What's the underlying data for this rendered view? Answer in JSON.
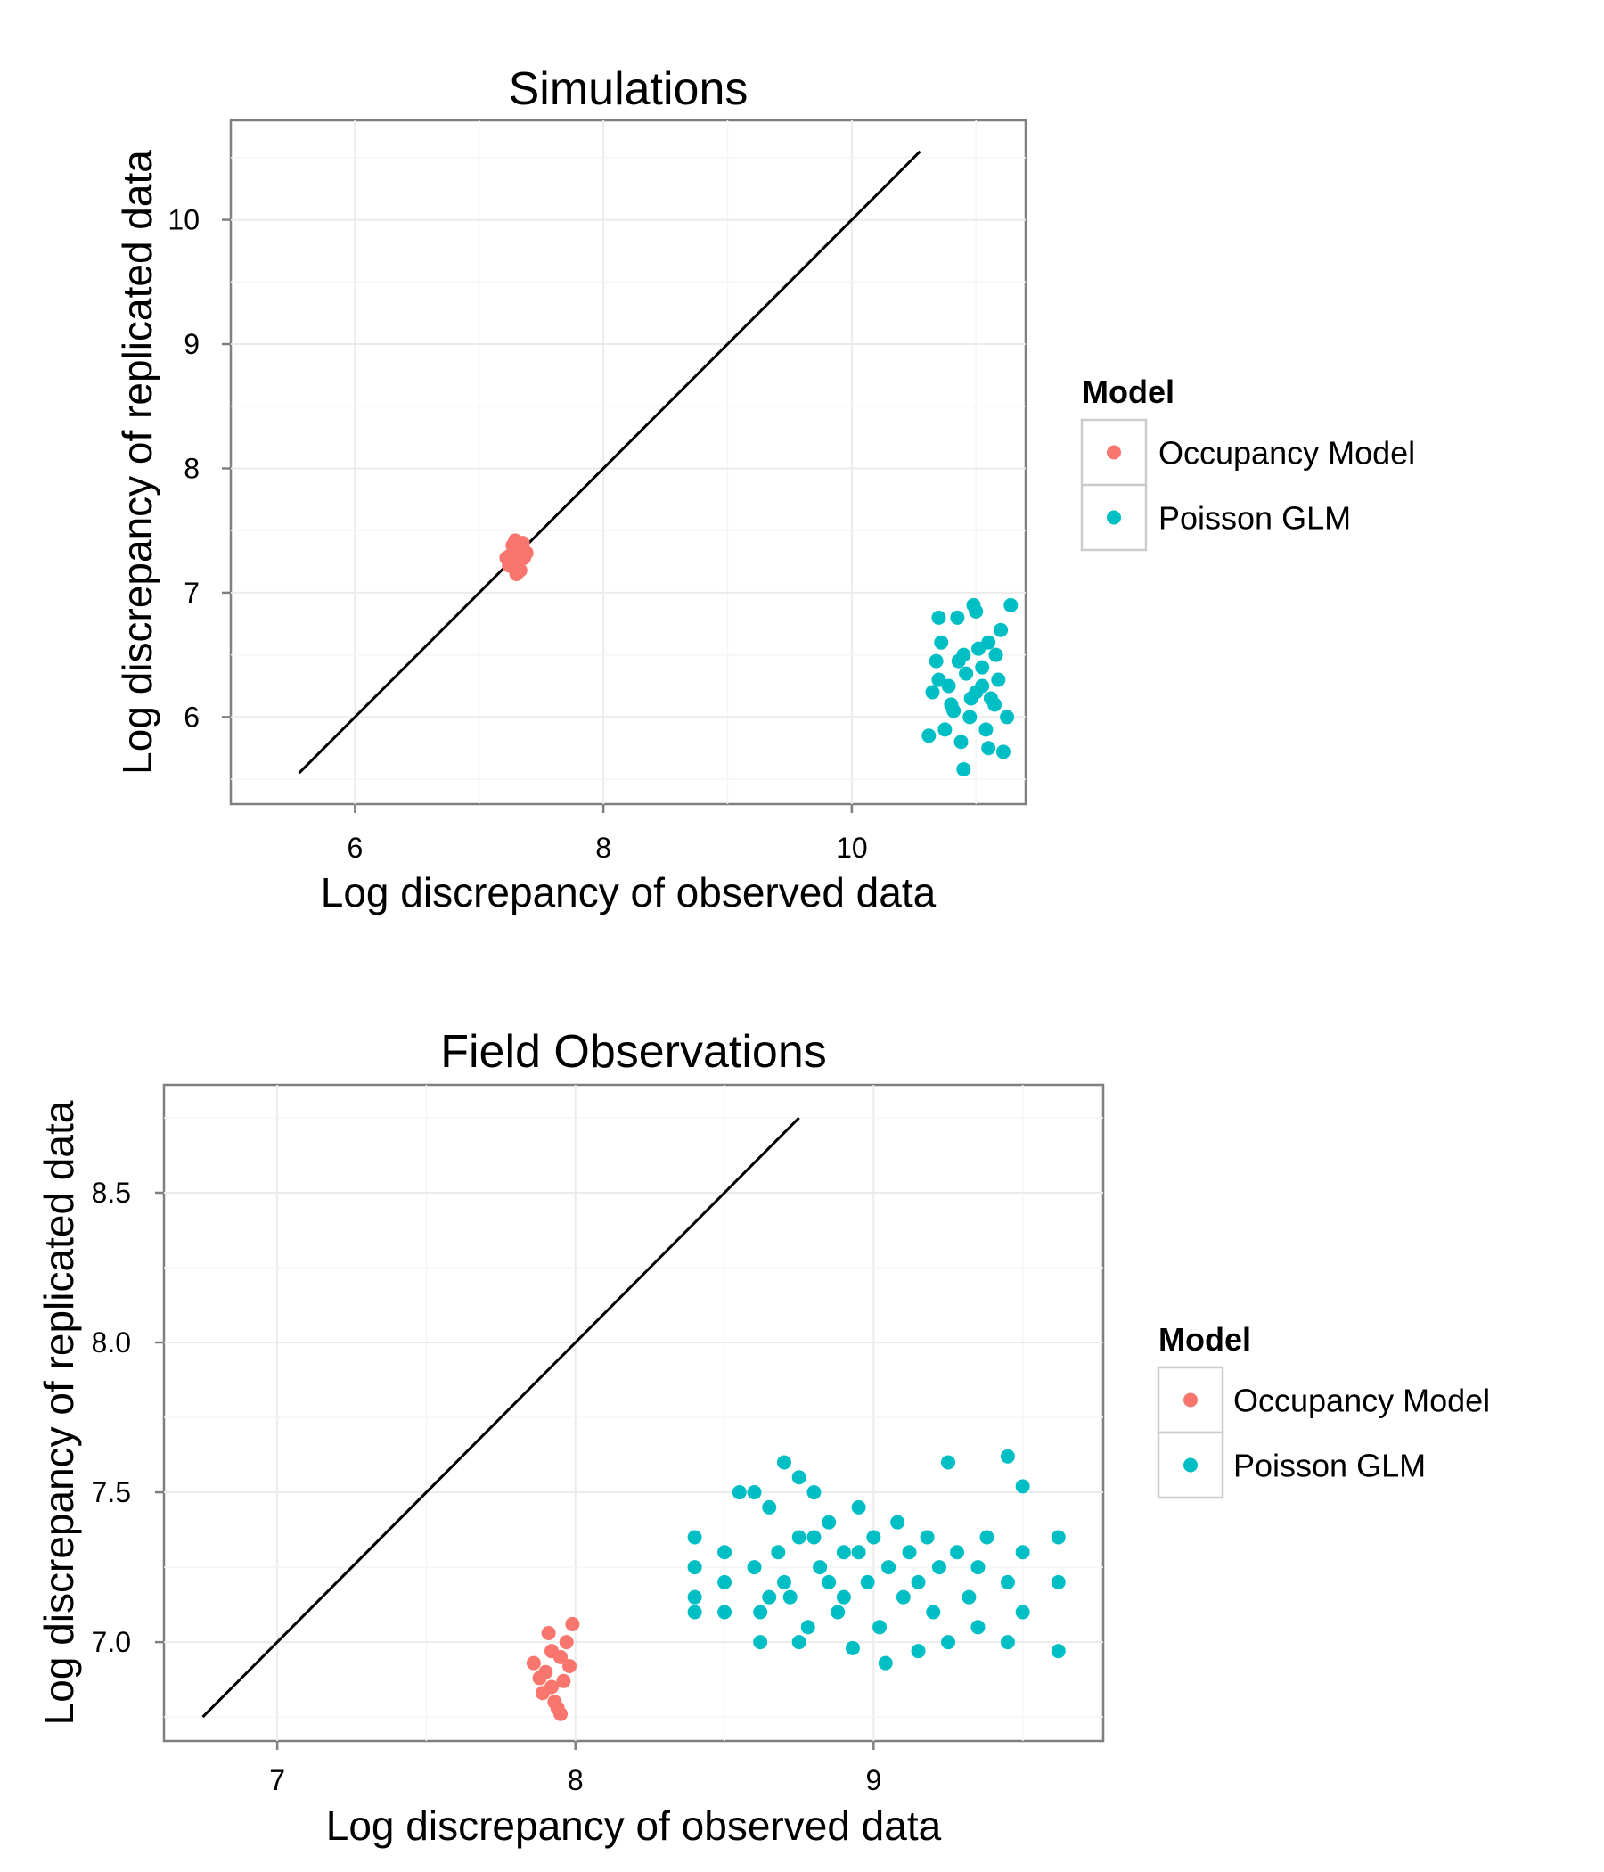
{
  "chart_data": [
    {
      "type": "scatter",
      "title": "Simulations",
      "xlabel": "Log discrepancy of observed data",
      "ylabel": "Log discrepancy of replicated data",
      "xlim": [
        5.0,
        11.4
      ],
      "ylim": [
        5.3,
        10.8
      ],
      "xticks": [
        "6",
        "8",
        "10"
      ],
      "yticks": [
        "6",
        "7",
        "8",
        "9",
        "10"
      ],
      "grid": true,
      "reference_line": {
        "x": [
          5.55,
          10.55
        ],
        "y": [
          5.55,
          10.55
        ]
      },
      "legend": {
        "title": "Model",
        "placement": "right",
        "entries": [
          "Occupancy Model",
          "Poisson GLM"
        ]
      },
      "colors": {
        "Occupancy Model": "#F8766D",
        "Poisson GLM": "#00BFC4"
      },
      "series": [
        {
          "name": "Occupancy Model",
          "points": [
            [
              7.25,
              7.3
            ],
            [
              7.3,
              7.35
            ],
            [
              7.35,
              7.4
            ],
            [
              7.28,
              7.2
            ],
            [
              7.32,
              7.25
            ],
            [
              7.22,
              7.28
            ],
            [
              7.38,
              7.32
            ],
            [
              7.27,
              7.38
            ],
            [
              7.33,
              7.18
            ],
            [
              7.3,
              7.15
            ],
            [
              7.36,
              7.28
            ],
            [
              7.24,
              7.22
            ],
            [
              7.29,
              7.42
            ],
            [
              7.31,
              7.3
            ],
            [
              7.26,
              7.26
            ]
          ]
        },
        {
          "name": "Poisson GLM",
          "points": [
            [
              10.7,
              6.3
            ],
            [
              10.8,
              6.1
            ],
            [
              10.9,
              6.5
            ],
            [
              11.0,
              6.2
            ],
            [
              11.1,
              6.6
            ],
            [
              10.75,
              5.9
            ],
            [
              10.85,
              6.8
            ],
            [
              10.95,
              6.0
            ],
            [
              11.05,
              6.4
            ],
            [
              11.15,
              6.1
            ],
            [
              11.2,
              6.7
            ],
            [
              10.65,
              6.2
            ],
            [
              10.72,
              6.6
            ],
            [
              10.88,
              5.8
            ],
            [
              10.98,
              6.9
            ],
            [
              11.08,
              5.9
            ],
            [
              11.18,
              6.3
            ],
            [
              11.25,
              6.0
            ],
            [
              10.68,
              6.45
            ],
            [
              10.78,
              6.25
            ],
            [
              10.92,
              6.35
            ],
            [
              11.02,
              6.55
            ],
            [
              11.12,
              6.15
            ],
            [
              10.82,
              6.05
            ],
            [
              10.9,
              5.58
            ],
            [
              11.1,
              5.75
            ],
            [
              11.22,
              5.72
            ],
            [
              11.28,
              6.9
            ],
            [
              10.62,
              5.85
            ],
            [
              10.7,
              6.8
            ],
            [
              11.0,
              6.85
            ],
            [
              10.86,
              6.45
            ],
            [
              11.05,
              6.25
            ],
            [
              10.96,
              6.15
            ],
            [
              11.16,
              6.5
            ]
          ]
        }
      ]
    },
    {
      "type": "scatter",
      "title": "Field Observations",
      "xlabel": "Log discrepancy of observed data",
      "ylabel": "Log discrepancy of replicated data",
      "xlim": [
        6.62,
        9.77
      ],
      "ylim": [
        6.67,
        8.86
      ],
      "xticks": [
        "7",
        "8",
        "9"
      ],
      "yticks": [
        "7.0",
        "7.5",
        "8.0",
        "8.5"
      ],
      "grid": true,
      "reference_line": {
        "x": [
          6.75,
          8.75
        ],
        "y": [
          6.75,
          8.75
        ]
      },
      "legend": {
        "title": "Model",
        "placement": "right",
        "entries": [
          "Occupancy Model",
          "Poisson GLM"
        ]
      },
      "colors": {
        "Occupancy Model": "#F8766D",
        "Poisson GLM": "#00BFC4"
      },
      "series": [
        {
          "name": "Occupancy Model",
          "points": [
            [
              7.9,
              6.9
            ],
            [
              7.95,
              6.95
            ],
            [
              7.92,
              6.85
            ],
            [
              7.97,
              7.0
            ],
            [
              7.88,
              6.88
            ],
            [
              7.93,
              6.8
            ],
            [
              7.98,
              6.92
            ],
            [
              7.91,
              7.03
            ],
            [
              7.94,
              6.78
            ],
            [
              7.86,
              6.93
            ],
            [
              7.96,
              6.87
            ],
            [
              7.99,
              7.06
            ],
            [
              7.89,
              6.83
            ],
            [
              7.95,
              6.76
            ],
            [
              7.92,
              6.97
            ]
          ]
        },
        {
          "name": "Poisson GLM",
          "points": [
            [
              8.4,
              7.35
            ],
            [
              8.4,
              7.25
            ],
            [
              8.4,
              7.15
            ],
            [
              8.4,
              7.1
            ],
            [
              8.5,
              7.3
            ],
            [
              8.5,
              7.2
            ],
            [
              8.5,
              7.1
            ],
            [
              8.55,
              7.5
            ],
            [
              8.6,
              7.25
            ],
            [
              8.62,
              7.1
            ],
            [
              8.65,
              7.45
            ],
            [
              8.68,
              7.3
            ],
            [
              8.7,
              7.6
            ],
            [
              8.72,
              7.15
            ],
            [
              8.75,
              7.35
            ],
            [
              8.78,
              7.05
            ],
            [
              8.8,
              7.5
            ],
            [
              8.82,
              7.25
            ],
            [
              8.85,
              7.4
            ],
            [
              8.88,
              7.1
            ],
            [
              8.9,
              7.3
            ],
            [
              8.93,
              6.98
            ],
            [
              8.95,
              7.45
            ],
            [
              8.98,
              7.2
            ],
            [
              9.0,
              7.35
            ],
            [
              9.02,
              7.05
            ],
            [
              9.05,
              7.25
            ],
            [
              9.04,
              6.93
            ],
            [
              9.08,
              7.4
            ],
            [
              9.1,
              7.15
            ],
            [
              9.12,
              7.3
            ],
            [
              9.15,
              7.2
            ],
            [
              9.15,
              6.97
            ],
            [
              9.18,
              7.35
            ],
            [
              9.2,
              7.1
            ],
            [
              9.22,
              7.25
            ],
            [
              9.25,
              7.6
            ],
            [
              9.25,
              7.0
            ],
            [
              9.28,
              7.3
            ],
            [
              9.32,
              7.15
            ],
            [
              9.35,
              7.25
            ],
            [
              9.35,
              7.05
            ],
            [
              9.38,
              7.35
            ],
            [
              9.45,
              7.62
            ],
            [
              9.45,
              7.2
            ],
            [
              9.45,
              7.0
            ],
            [
              9.5,
              7.52
            ],
            [
              9.5,
              7.3
            ],
            [
              9.5,
              7.1
            ],
            [
              9.62,
              7.35
            ],
            [
              9.62,
              7.2
            ],
            [
              9.62,
              6.97
            ],
            [
              8.65,
              7.15
            ],
            [
              8.75,
              7.55
            ],
            [
              8.85,
              7.2
            ],
            [
              8.95,
              7.3
            ],
            [
              8.7,
              7.2
            ],
            [
              8.8,
              7.35
            ],
            [
              8.9,
              7.15
            ],
            [
              8.6,
              7.5
            ],
            [
              8.62,
              7.0
            ],
            [
              8.75,
              7.0
            ]
          ]
        }
      ]
    }
  ]
}
